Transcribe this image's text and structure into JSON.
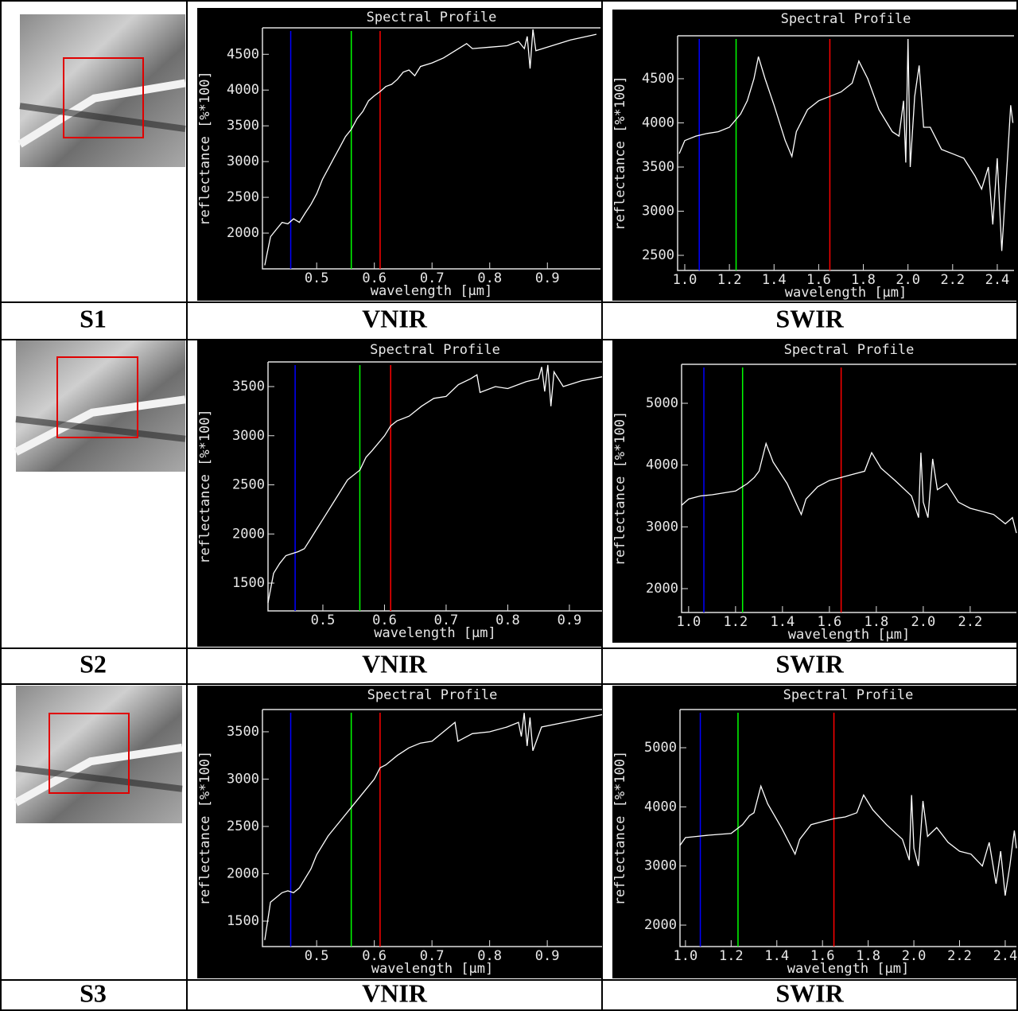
{
  "chart_data": [
    {
      "type": "line",
      "title": "Spectral Profile",
      "x_label": "wavelength [μm]",
      "y_label": "reflectance [%*100]",
      "xlim": [
        0.406,
        0.992
      ],
      "xticks": [
        0.5,
        0.6,
        0.7,
        0.8,
        0.9
      ],
      "ylim": [
        1500,
        4870
      ],
      "yticks": [
        2000,
        2500,
        3000,
        3500,
        4000,
        4500
      ],
      "markers": [
        {
          "x": 0.455,
          "color": "#0000ff"
        },
        {
          "x": 0.56,
          "color": "#00ff00"
        },
        {
          "x": 0.61,
          "color": "#ff0000"
        }
      ],
      "series": [
        {
          "color": "#ffffff",
          "x": [
            0.41,
            0.415,
            0.42,
            0.43,
            0.44,
            0.45,
            0.46,
            0.47,
            0.48,
            0.49,
            0.5,
            0.51,
            0.52,
            0.53,
            0.54,
            0.55,
            0.56,
            0.57,
            0.58,
            0.59,
            0.6,
            0.61,
            0.62,
            0.63,
            0.64,
            0.65,
            0.66,
            0.67,
            0.68,
            0.7,
            0.72,
            0.74,
            0.76,
            0.77,
            0.8,
            0.83,
            0.85,
            0.86,
            0.865,
            0.87,
            0.875,
            0.88,
            0.9,
            0.94,
            0.985
          ],
          "values": [
            1550,
            1750,
            1950,
            2050,
            2150,
            2130,
            2200,
            2150,
            2280,
            2400,
            2550,
            2750,
            2900,
            3050,
            3200,
            3350,
            3450,
            3600,
            3700,
            3850,
            3920,
            3980,
            4050,
            4080,
            4150,
            4250,
            4280,
            4200,
            4330,
            4380,
            4450,
            4550,
            4650,
            4580,
            4600,
            4620,
            4680,
            4580,
            4750,
            4300,
            4850,
            4550,
            4600,
            4700,
            4780
          ]
        }
      ]
    },
    {
      "type": "line",
      "title": "Spectral Profile",
      "x_label": "wavelength [μm]",
      "y_label": "reflectance [%*100]",
      "xlim": [
        0.968,
        2.475
      ],
      "xticks": [
        {
          "value": 1,
          "label": "1.0"
        },
        1.2,
        1.4,
        1.6,
        1.8,
        {
          "value": 2,
          "label": "2.0"
        },
        2.2,
        2.4
      ],
      "ylim": [
        2329,
        4986
      ],
      "yticks": [
        2500,
        3000,
        3500,
        4000,
        4500
      ],
      "markers": [
        {
          "x": 1.065,
          "color": "#0000ff"
        },
        {
          "x": 1.23,
          "color": "#00ff00"
        },
        {
          "x": 1.65,
          "color": "#ff0000"
        }
      ],
      "series": [
        {
          "color": "#ffffff",
          "x": [
            0.975,
            1.0,
            1.05,
            1.1,
            1.15,
            1.2,
            1.25,
            1.28,
            1.31,
            1.33,
            1.36,
            1.4,
            1.45,
            1.48,
            1.5,
            1.55,
            1.6,
            1.65,
            1.7,
            1.75,
            1.78,
            1.82,
            1.87,
            1.93,
            1.96,
            1.98,
            1.99,
            2.0,
            2.01,
            2.03,
            2.05,
            2.07,
            2.1,
            2.15,
            2.2,
            2.25,
            2.3,
            2.33,
            2.36,
            2.38,
            2.4,
            2.42,
            2.44,
            2.46,
            2.47
          ],
          "values": [
            3650,
            3800,
            3850,
            3880,
            3900,
            3950,
            4100,
            4250,
            4500,
            4750,
            4500,
            4200,
            3800,
            3620,
            3900,
            4150,
            4250,
            4300,
            4350,
            4450,
            4700,
            4500,
            4150,
            3900,
            3850,
            4250,
            3550,
            4950,
            3500,
            4300,
            4650,
            3950,
            3950,
            3700,
            3650,
            3600,
            3400,
            3250,
            3500,
            2850,
            3600,
            2550,
            3350,
            4200,
            4000
          ]
        }
      ]
    },
    {
      "type": "line",
      "title": "Spectral Profile",
      "x_label": "wavelength [μm]",
      "y_label": "reflectance [%*100]",
      "xlim": [
        0.411,
        0.953
      ],
      "xticks": [
        0.5,
        0.6,
        0.7,
        0.8,
        0.9
      ],
      "ylim": [
        1217,
        3751
      ],
      "yticks": [
        1500,
        2000,
        2500,
        3000,
        3500
      ],
      "markers": [
        {
          "x": 0.455,
          "color": "#0000ff"
        },
        {
          "x": 0.56,
          "color": "#00ff00"
        },
        {
          "x": 0.61,
          "color": "#ff0000"
        }
      ],
      "series": [
        {
          "color": "#ffffff",
          "x": [
            0.411,
            0.42,
            0.43,
            0.44,
            0.45,
            0.46,
            0.47,
            0.48,
            0.49,
            0.5,
            0.52,
            0.54,
            0.56,
            0.57,
            0.58,
            0.6,
            0.61,
            0.62,
            0.64,
            0.66,
            0.68,
            0.7,
            0.72,
            0.74,
            0.75,
            0.755,
            0.78,
            0.8,
            0.83,
            0.85,
            0.855,
            0.86,
            0.865,
            0.87,
            0.875,
            0.89,
            0.92,
            0.953
          ],
          "values": [
            1300,
            1600,
            1700,
            1780,
            1800,
            1820,
            1850,
            1950,
            2050,
            2150,
            2350,
            2550,
            2650,
            2780,
            2850,
            3000,
            3100,
            3150,
            3200,
            3300,
            3380,
            3400,
            3520,
            3580,
            3620,
            3440,
            3500,
            3480,
            3550,
            3580,
            3700,
            3450,
            3720,
            3300,
            3650,
            3500,
            3560,
            3600
          ]
        }
      ]
    },
    {
      "type": "line",
      "title": "Spectral Profile",
      "x_label": "wavelength [μm]",
      "y_label": "reflectance [%*100]",
      "xlim": [
        0.97,
        2.397
      ],
      "xticks": [
        {
          "value": 1,
          "label": "1.0"
        },
        1.2,
        1.4,
        1.6,
        1.8,
        {
          "value": 2,
          "label": "2.0"
        },
        2.2
      ],
      "ylim": [
        1614,
        5631
      ],
      "yticks": [
        2000,
        3000,
        4000,
        5000
      ],
      "markers": [
        {
          "x": 1.065,
          "color": "#0000ff"
        },
        {
          "x": 1.23,
          "color": "#00ff00"
        },
        {
          "x": 1.65,
          "color": "#ff0000"
        }
      ],
      "series": [
        {
          "color": "#ffffff",
          "x": [
            0.97,
            1.0,
            1.05,
            1.1,
            1.2,
            1.25,
            1.28,
            1.3,
            1.33,
            1.36,
            1.42,
            1.48,
            1.5,
            1.55,
            1.6,
            1.65,
            1.7,
            1.75,
            1.78,
            1.82,
            1.88,
            1.95,
            1.98,
            1.99,
            2.0,
            2.02,
            2.04,
            2.06,
            2.1,
            2.15,
            2.2,
            2.25,
            2.3,
            2.35,
            2.38,
            2.397
          ],
          "values": [
            3350,
            3450,
            3500,
            3520,
            3580,
            3700,
            3800,
            3900,
            4350,
            4050,
            3700,
            3200,
            3450,
            3650,
            3750,
            3800,
            3850,
            3900,
            4200,
            3950,
            3750,
            3500,
            3150,
            4200,
            3400,
            3150,
            4100,
            3600,
            3700,
            3400,
            3300,
            3250,
            3200,
            3050,
            3150,
            2900
          ]
        }
      ]
    },
    {
      "type": "line",
      "title": "Spectral Profile",
      "x_label": "wavelength [μm]",
      "y_label": "reflectance [%*100]",
      "xlim": [
        0.406,
        0.995
      ],
      "xticks": [
        0.5,
        0.6,
        0.7,
        0.8,
        0.9
      ],
      "ylim": [
        1231,
        3735
      ],
      "yticks": [
        1500,
        2000,
        2500,
        3000,
        3500
      ],
      "markers": [
        {
          "x": 0.455,
          "color": "#0000ff"
        },
        {
          "x": 0.56,
          "color": "#00ff00"
        },
        {
          "x": 0.61,
          "color": "#ff0000"
        }
      ],
      "series": [
        {
          "color": "#ffffff",
          "x": [
            0.41,
            0.42,
            0.43,
            0.44,
            0.45,
            0.46,
            0.47,
            0.48,
            0.49,
            0.5,
            0.52,
            0.54,
            0.56,
            0.58,
            0.6,
            0.61,
            0.62,
            0.64,
            0.66,
            0.68,
            0.7,
            0.72,
            0.74,
            0.745,
            0.77,
            0.8,
            0.83,
            0.85,
            0.855,
            0.86,
            0.865,
            0.87,
            0.875,
            0.89,
            0.93,
            0.995
          ],
          "values": [
            1300,
            1700,
            1750,
            1800,
            1820,
            1800,
            1850,
            1950,
            2050,
            2200,
            2400,
            2550,
            2700,
            2850,
            3000,
            3120,
            3150,
            3250,
            3330,
            3380,
            3400,
            3500,
            3600,
            3400,
            3480,
            3500,
            3550,
            3600,
            3450,
            3700,
            3350,
            3650,
            3300,
            3550,
            3600,
            3680
          ]
        }
      ]
    },
    {
      "type": "line",
      "title": "Spectral Profile",
      "x_label": "wavelength [μm]",
      "y_label": "reflectance [%*100]",
      "xlim": [
        0.976,
        2.449
      ],
      "xticks": [
        {
          "value": 1,
          "label": "1.0"
        },
        1.2,
        1.4,
        1.6,
        1.8,
        {
          "value": 2,
          "label": "2.0"
        },
        2.2,
        2.4
      ],
      "ylim": [
        1637,
        5646
      ],
      "yticks": [
        2000,
        3000,
        4000,
        5000
      ],
      "markers": [
        {
          "x": 1.065,
          "color": "#0000ff"
        },
        {
          "x": 1.23,
          "color": "#00ff00"
        },
        {
          "x": 1.65,
          "color": "#ff0000"
        }
      ],
      "series": [
        {
          "color": "#ffffff",
          "x": [
            0.976,
            1.0,
            1.05,
            1.1,
            1.2,
            1.25,
            1.28,
            1.3,
            1.33,
            1.36,
            1.42,
            1.48,
            1.5,
            1.55,
            1.6,
            1.65,
            1.7,
            1.75,
            1.78,
            1.82,
            1.88,
            1.95,
            1.98,
            1.99,
            2.0,
            2.02,
            2.04,
            2.06,
            2.1,
            2.15,
            2.2,
            2.25,
            2.3,
            2.33,
            2.36,
            2.38,
            2.4,
            2.42,
            2.44,
            2.449
          ],
          "values": [
            3350,
            3480,
            3500,
            3520,
            3550,
            3700,
            3850,
            3900,
            4350,
            4050,
            3650,
            3200,
            3450,
            3700,
            3750,
            3800,
            3830,
            3900,
            4200,
            3950,
            3700,
            3450,
            3100,
            4200,
            3300,
            3000,
            4100,
            3500,
            3650,
            3400,
            3250,
            3200,
            3000,
            3400,
            2700,
            3250,
            2500,
            3000,
            3600,
            3300
          ]
        }
      ]
    }
  ],
  "labels": [
    [
      "S1",
      "VNIR",
      "SWIR"
    ],
    [
      "S2",
      "VNIR",
      "SWIR"
    ],
    [
      "S3",
      "VNIR",
      "SWIR"
    ]
  ]
}
